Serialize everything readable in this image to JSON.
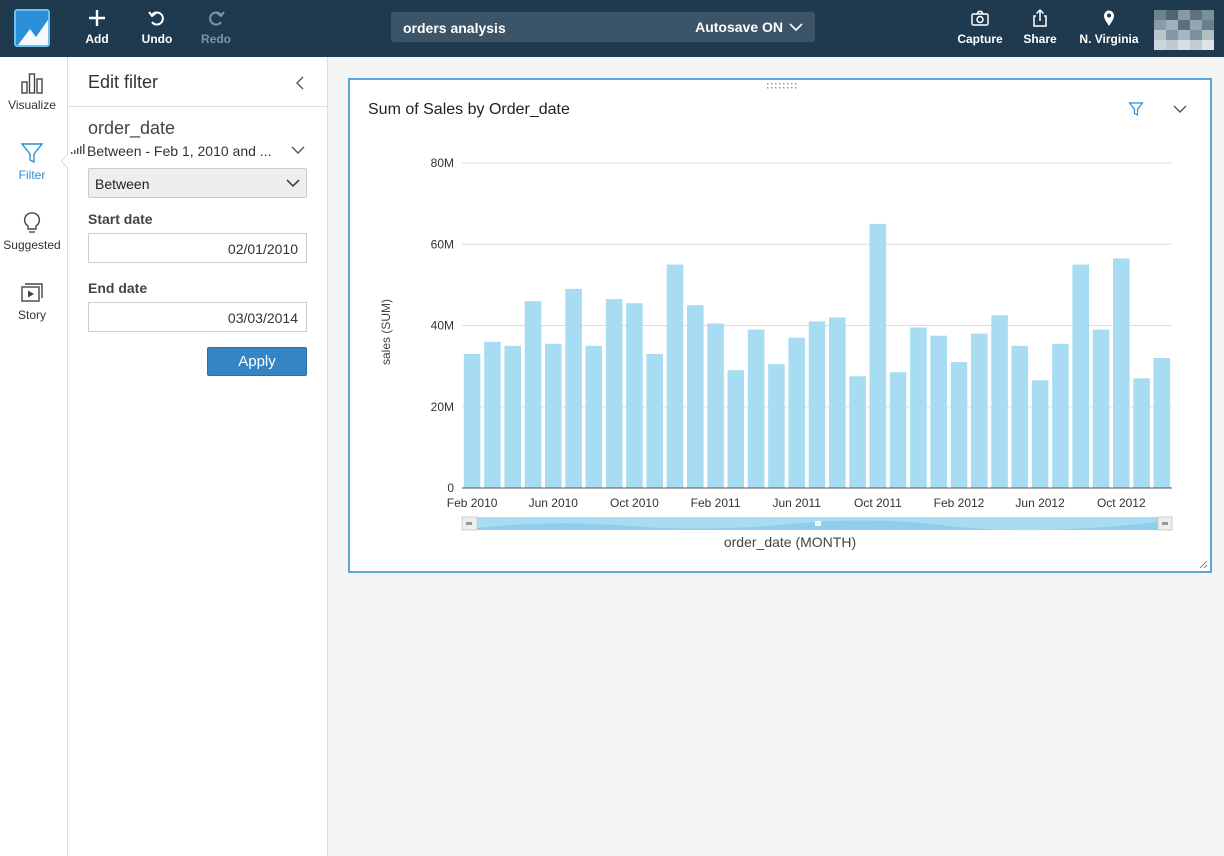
{
  "toolbar": {
    "add_label": "Add",
    "undo_label": "Undo",
    "redo_label": "Redo",
    "analysis_name": "orders analysis",
    "autosave_label": "Autosave ON",
    "capture_label": "Capture",
    "share_label": "Share",
    "region_label": "N. Virginia"
  },
  "rail": {
    "visualize_label": "Visualize",
    "filter_label": "Filter",
    "suggested_label": "Suggested",
    "story_label": "Story"
  },
  "filter_panel": {
    "title": "Edit filter",
    "field_name": "order_date",
    "summary": "Between - Feb 1, 2010 and ...",
    "condition": "Between",
    "start_label": "Start date",
    "start_value": "02/01/2010",
    "end_label": "End date",
    "end_value": "03/03/2014",
    "apply_label": "Apply"
  },
  "colors": {
    "bar": "#a8dcf3",
    "accent": "#2a8fd6",
    "topbar": "#1f3a4f"
  },
  "chart_data": {
    "type": "bar",
    "title": "Sum of Sales by Order_date",
    "xlabel": "order_date (MONTH)",
    "ylabel": "sales (SUM)",
    "ylim": [
      0,
      80
    ],
    "y_unit": "M",
    "yticks": [
      "0",
      "20M",
      "40M",
      "60M",
      "80M"
    ],
    "x_tick_labels": [
      "Feb 2010",
      "Jun 2010",
      "Oct 2010",
      "Feb 2011",
      "Jun 2011",
      "Oct 2011",
      "Feb 2012",
      "Jun 2012",
      "Oct 2012"
    ],
    "categories": [
      "2010-02",
      "2010-03",
      "2010-04",
      "2010-05",
      "2010-06",
      "2010-07",
      "2010-08",
      "2010-09",
      "2010-10",
      "2010-11",
      "2010-12",
      "2011-01",
      "2011-02",
      "2011-03",
      "2011-04",
      "2011-05",
      "2011-06",
      "2011-07",
      "2011-08",
      "2011-09",
      "2011-10",
      "2011-11",
      "2011-12",
      "2012-01",
      "2012-02",
      "2012-03",
      "2012-04",
      "2012-05",
      "2012-06",
      "2012-07",
      "2012-08",
      "2012-09",
      "2012-10",
      "2012-11",
      "2012-12"
    ],
    "values": [
      33,
      36,
      35,
      46,
      35.5,
      49,
      35,
      46.5,
      45.5,
      33,
      55,
      45,
      40.5,
      29,
      39,
      30.5,
      37,
      41,
      42,
      27.5,
      65,
      28.5,
      39.5,
      37.5,
      31,
      38,
      42.5,
      35,
      26.5,
      35.5,
      55,
      39,
      56.5,
      27,
      32
    ]
  }
}
